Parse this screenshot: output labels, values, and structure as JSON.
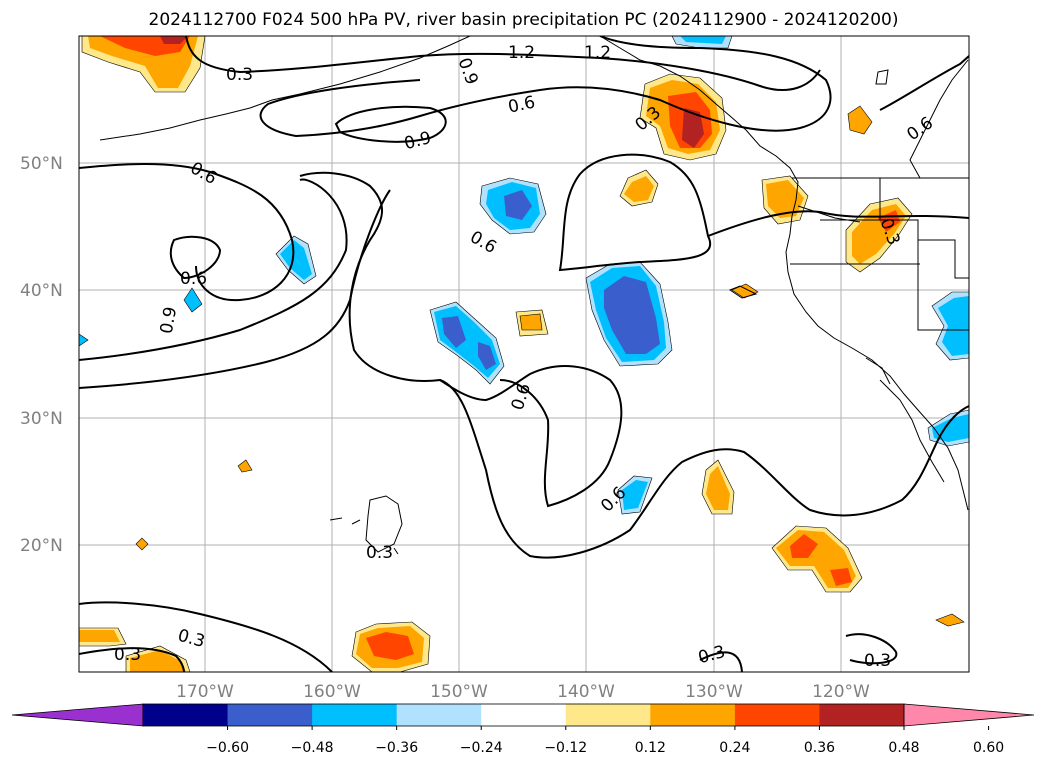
{
  "title": "2024112700 F024 500 hPa PV, river basin precipitation PC (2024112900 - 2024120200)",
  "lat_labels": [
    {
      "id": "lat-50",
      "text": "50°N"
    },
    {
      "id": "lat-40",
      "text": "40°N"
    },
    {
      "id": "lat-30",
      "text": "30°N"
    },
    {
      "id": "lat-20",
      "text": "20°N"
    }
  ],
  "lon_labels": [
    {
      "id": "lon-170",
      "text": "170°W"
    },
    {
      "id": "lon-160",
      "text": "160°W"
    },
    {
      "id": "lon-150",
      "text": "150°W"
    },
    {
      "id": "lon-140",
      "text": "140°W"
    },
    {
      "id": "lon-130",
      "text": "130°W"
    },
    {
      "id": "lon-120",
      "text": "120°W"
    }
  ],
  "colorbar": {
    "ticks": [
      "−0.60",
      "−0.48",
      "−0.36",
      "−0.24",
      "−0.12",
      "0.12",
      "0.24",
      "0.36",
      "0.48",
      "0.60"
    ],
    "colors": [
      "#9b30d0",
      "#00008b",
      "#3a5fcd",
      "#00bfff",
      "#b0e2ff",
      "#ffffff",
      "#ffe88a",
      "#ffa500",
      "#ff4500",
      "#b22222",
      "#ff88aa"
    ]
  },
  "contour_labels": [
    "0.3",
    "0.9",
    "1.2",
    "1.2",
    "0.6",
    "0.9",
    "0.6",
    "0.6",
    "0.3",
    "0.6",
    "0.6",
    "0.9",
    "0.6",
    "0.3",
    "0.6",
    "0.3",
    "0.3",
    "0.3",
    "0.3",
    "0.3"
  ]
}
